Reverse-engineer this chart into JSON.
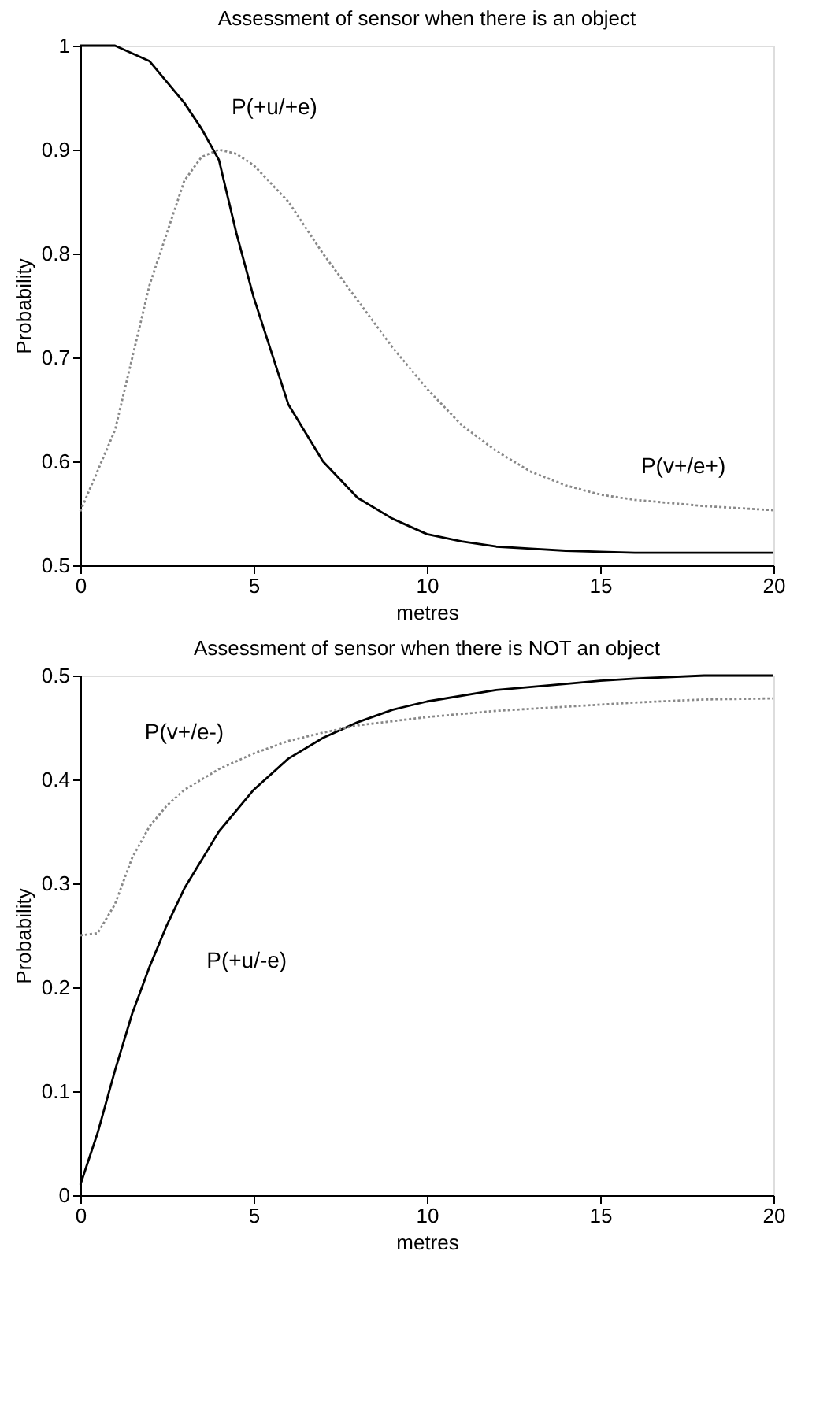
{
  "chart_data": [
    {
      "type": "line",
      "title": "Assessment of sensor when there is an object",
      "xlabel": "metres",
      "ylabel": "Probability",
      "xlim": [
        0,
        20
      ],
      "ylim": [
        0.5,
        1
      ],
      "xticks": [
        0,
        5,
        10,
        15,
        20
      ],
      "yticks": [
        0.5,
        0.6,
        0.7,
        0.8,
        0.9,
        1
      ],
      "x": [
        0,
        1,
        2,
        3,
        3.5,
        4,
        4.5,
        5,
        6,
        7,
        8,
        9,
        10,
        11,
        12,
        13,
        14,
        15,
        16,
        17,
        18,
        20
      ],
      "series": [
        {
          "name": "P(+u/+e)",
          "color": "#000000",
          "line_style": "solid",
          "values": [
            1.0,
            1.0,
            0.985,
            0.945,
            0.92,
            0.89,
            0.82,
            0.758,
            0.655,
            0.6,
            0.565,
            0.545,
            0.53,
            0.523,
            0.518,
            0.516,
            0.514,
            0.513,
            0.512,
            0.512,
            0.512,
            0.512
          ]
        },
        {
          "name": "P(v+/e+)",
          "color": "#888888",
          "line_style": "dotted",
          "values": [
            0.552,
            0.63,
            0.77,
            0.87,
            0.893,
            0.9,
            0.896,
            0.885,
            0.85,
            0.8,
            0.755,
            0.71,
            0.67,
            0.635,
            0.61,
            0.59,
            0.577,
            0.568,
            0.563,
            0.56,
            0.557,
            0.553
          ]
        }
      ]
    },
    {
      "type": "line",
      "title": "Assessment of sensor when there is NOT an object",
      "xlabel": "metres",
      "ylabel": "Probability",
      "xlim": [
        0,
        20
      ],
      "ylim": [
        0,
        0.5
      ],
      "xticks": [
        0,
        5,
        10,
        15,
        20
      ],
      "yticks": [
        0,
        0.1,
        0.2,
        0.3,
        0.4,
        0.5
      ],
      "x": [
        0,
        0.5,
        1,
        1.5,
        2,
        2.5,
        3,
        4,
        5,
        6,
        7,
        8,
        9,
        10,
        12,
        14,
        15,
        16,
        18,
        20
      ],
      "series": [
        {
          "name": "P(+u/-e)",
          "color": "#000000",
          "line_style": "solid",
          "values": [
            0.01,
            0.06,
            0.12,
            0.175,
            0.22,
            0.26,
            0.295,
            0.35,
            0.39,
            0.42,
            0.44,
            0.455,
            0.467,
            0.475,
            0.486,
            0.492,
            0.495,
            0.497,
            0.5,
            0.5
          ]
        },
        {
          "name": "P(v+/e-)",
          "color": "#888888",
          "line_style": "dotted",
          "values": [
            0.25,
            0.252,
            0.28,
            0.325,
            0.355,
            0.375,
            0.39,
            0.41,
            0.425,
            0.437,
            0.445,
            0.452,
            0.456,
            0.46,
            0.466,
            0.47,
            0.472,
            0.474,
            0.477,
            0.478
          ]
        }
      ]
    }
  ]
}
